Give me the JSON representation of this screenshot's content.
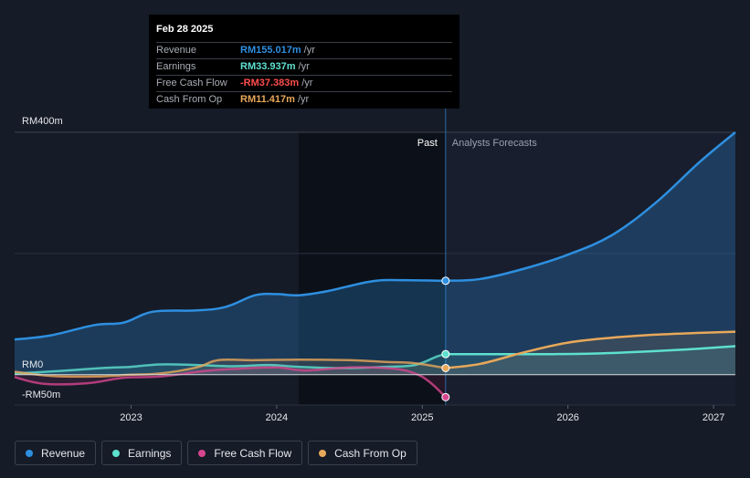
{
  "colors": {
    "revenue": "#2e8fe0",
    "earnings": "#5ee0cf",
    "free_cash_flow": "#d6458e",
    "cash_from_op": "#e8a85a",
    "background": "#151b27",
    "past_shade": "#0b0f17",
    "forecast_fill": "#16304a"
  },
  "tooltip": {
    "date": "Feb 28 2025",
    "rows": [
      {
        "label": "Revenue",
        "value": "RM155.017m",
        "unit": "/yr",
        "color": "#2e8fe0"
      },
      {
        "label": "Earnings",
        "value": "RM33.937m",
        "unit": "/yr",
        "color": "#5ee0cf"
      },
      {
        "label": "Free Cash Flow",
        "value": "-RM37.383m",
        "unit": "/yr",
        "color": "#ff4d4d"
      },
      {
        "label": "Cash From Op",
        "value": "RM11.417m",
        "unit": "/yr",
        "color": "#e8a85a"
      }
    ]
  },
  "legend": [
    {
      "label": "Revenue",
      "icon": "revenue-dot-icon",
      "color": "#2e8fe0"
    },
    {
      "label": "Earnings",
      "icon": "earnings-dot-icon",
      "color": "#5ee0cf"
    },
    {
      "label": "Free Cash Flow",
      "icon": "free-cash-flow-dot-icon",
      "color": "#d6458e"
    },
    {
      "label": "Cash From Op",
      "icon": "cash-from-op-dot-icon",
      "color": "#e8a85a"
    }
  ],
  "chart_data": {
    "type": "area",
    "title": "",
    "xlabel": "",
    "ylabel": "",
    "x_range": [
      2022.2,
      2027.15
    ],
    "ylim": [
      -50,
      400
    ],
    "y_tick_labels": [
      {
        "value": 400,
        "label": "RM400m"
      },
      {
        "value": 0,
        "label": "RM0"
      },
      {
        "value": -50,
        "label": "-RM50m"
      }
    ],
    "x_ticks": [
      {
        "value": 2023,
        "label": "2023"
      },
      {
        "value": 2024,
        "label": "2024"
      },
      {
        "value": 2025,
        "label": "2025"
      },
      {
        "value": 2026,
        "label": "2026"
      },
      {
        "value": 2027,
        "label": "2027"
      }
    ],
    "past_label": "Past",
    "forecast_label": "Analysts Forecasts",
    "past_region_start": 2024.15,
    "split_x": 2025.16,
    "series": [
      {
        "name": "Revenue",
        "key": "revenue",
        "past": [
          [
            2022.2,
            58
          ],
          [
            2022.45,
            65
          ],
          [
            2022.75,
            82
          ],
          [
            2022.95,
            86
          ],
          [
            2023.15,
            104
          ],
          [
            2023.45,
            106
          ],
          [
            2023.65,
            112
          ],
          [
            2023.85,
            131
          ],
          [
            2024.0,
            133
          ],
          [
            2024.15,
            131
          ],
          [
            2024.35,
            138
          ],
          [
            2024.65,
            154
          ],
          [
            2024.85,
            156
          ],
          [
            2025.16,
            155
          ]
        ],
        "forecast": [
          [
            2025.16,
            155
          ],
          [
            2025.4,
            158
          ],
          [
            2025.7,
            175
          ],
          [
            2026.0,
            198
          ],
          [
            2026.3,
            230
          ],
          [
            2026.6,
            283
          ],
          [
            2026.9,
            350
          ],
          [
            2027.15,
            400
          ]
        ]
      },
      {
        "name": "Earnings",
        "key": "earnings",
        "past": [
          [
            2022.2,
            2
          ],
          [
            2022.5,
            6
          ],
          [
            2022.8,
            11
          ],
          [
            2023.0,
            13
          ],
          [
            2023.2,
            17
          ],
          [
            2023.45,
            16
          ],
          [
            2023.7,
            14
          ],
          [
            2023.95,
            16
          ],
          [
            2024.15,
            13
          ],
          [
            2024.45,
            11
          ],
          [
            2024.75,
            13
          ],
          [
            2024.95,
            16
          ],
          [
            2025.1,
            30
          ],
          [
            2025.16,
            34
          ]
        ],
        "forecast": [
          [
            2025.16,
            34
          ],
          [
            2025.5,
            34
          ],
          [
            2025.9,
            34
          ],
          [
            2026.2,
            35
          ],
          [
            2026.6,
            39
          ],
          [
            2026.9,
            43
          ],
          [
            2027.15,
            47
          ]
        ]
      },
      {
        "name": "Free Cash Flow",
        "key": "free_cash_flow",
        "past": [
          [
            2022.2,
            -4
          ],
          [
            2022.4,
            -15
          ],
          [
            2022.7,
            -14
          ],
          [
            2022.95,
            -5
          ],
          [
            2023.2,
            -3
          ],
          [
            2023.5,
            6
          ],
          [
            2023.75,
            10
          ],
          [
            2024.0,
            12
          ],
          [
            2024.2,
            7
          ],
          [
            2024.5,
            12
          ],
          [
            2024.8,
            10
          ],
          [
            2024.95,
            2
          ],
          [
            2025.05,
            -12
          ],
          [
            2025.16,
            -37
          ]
        ],
        "forecast": []
      },
      {
        "name": "Cash From Op",
        "key": "cash_from_op",
        "past": [
          [
            2022.2,
            5
          ],
          [
            2022.45,
            -2
          ],
          [
            2022.75,
            -3
          ],
          [
            2023.0,
            0
          ],
          [
            2023.2,
            2
          ],
          [
            2023.45,
            12
          ],
          [
            2023.6,
            24
          ],
          [
            2023.85,
            24
          ],
          [
            2024.15,
            25
          ],
          [
            2024.5,
            24
          ],
          [
            2024.75,
            21
          ],
          [
            2024.95,
            19
          ],
          [
            2025.16,
            11
          ]
        ],
        "forecast": [
          [
            2025.16,
            11
          ],
          [
            2025.4,
            18
          ],
          [
            2025.7,
            37
          ],
          [
            2026.0,
            53
          ],
          [
            2026.3,
            61
          ],
          [
            2026.6,
            66
          ],
          [
            2026.9,
            69
          ],
          [
            2027.15,
            71
          ]
        ]
      }
    ]
  }
}
